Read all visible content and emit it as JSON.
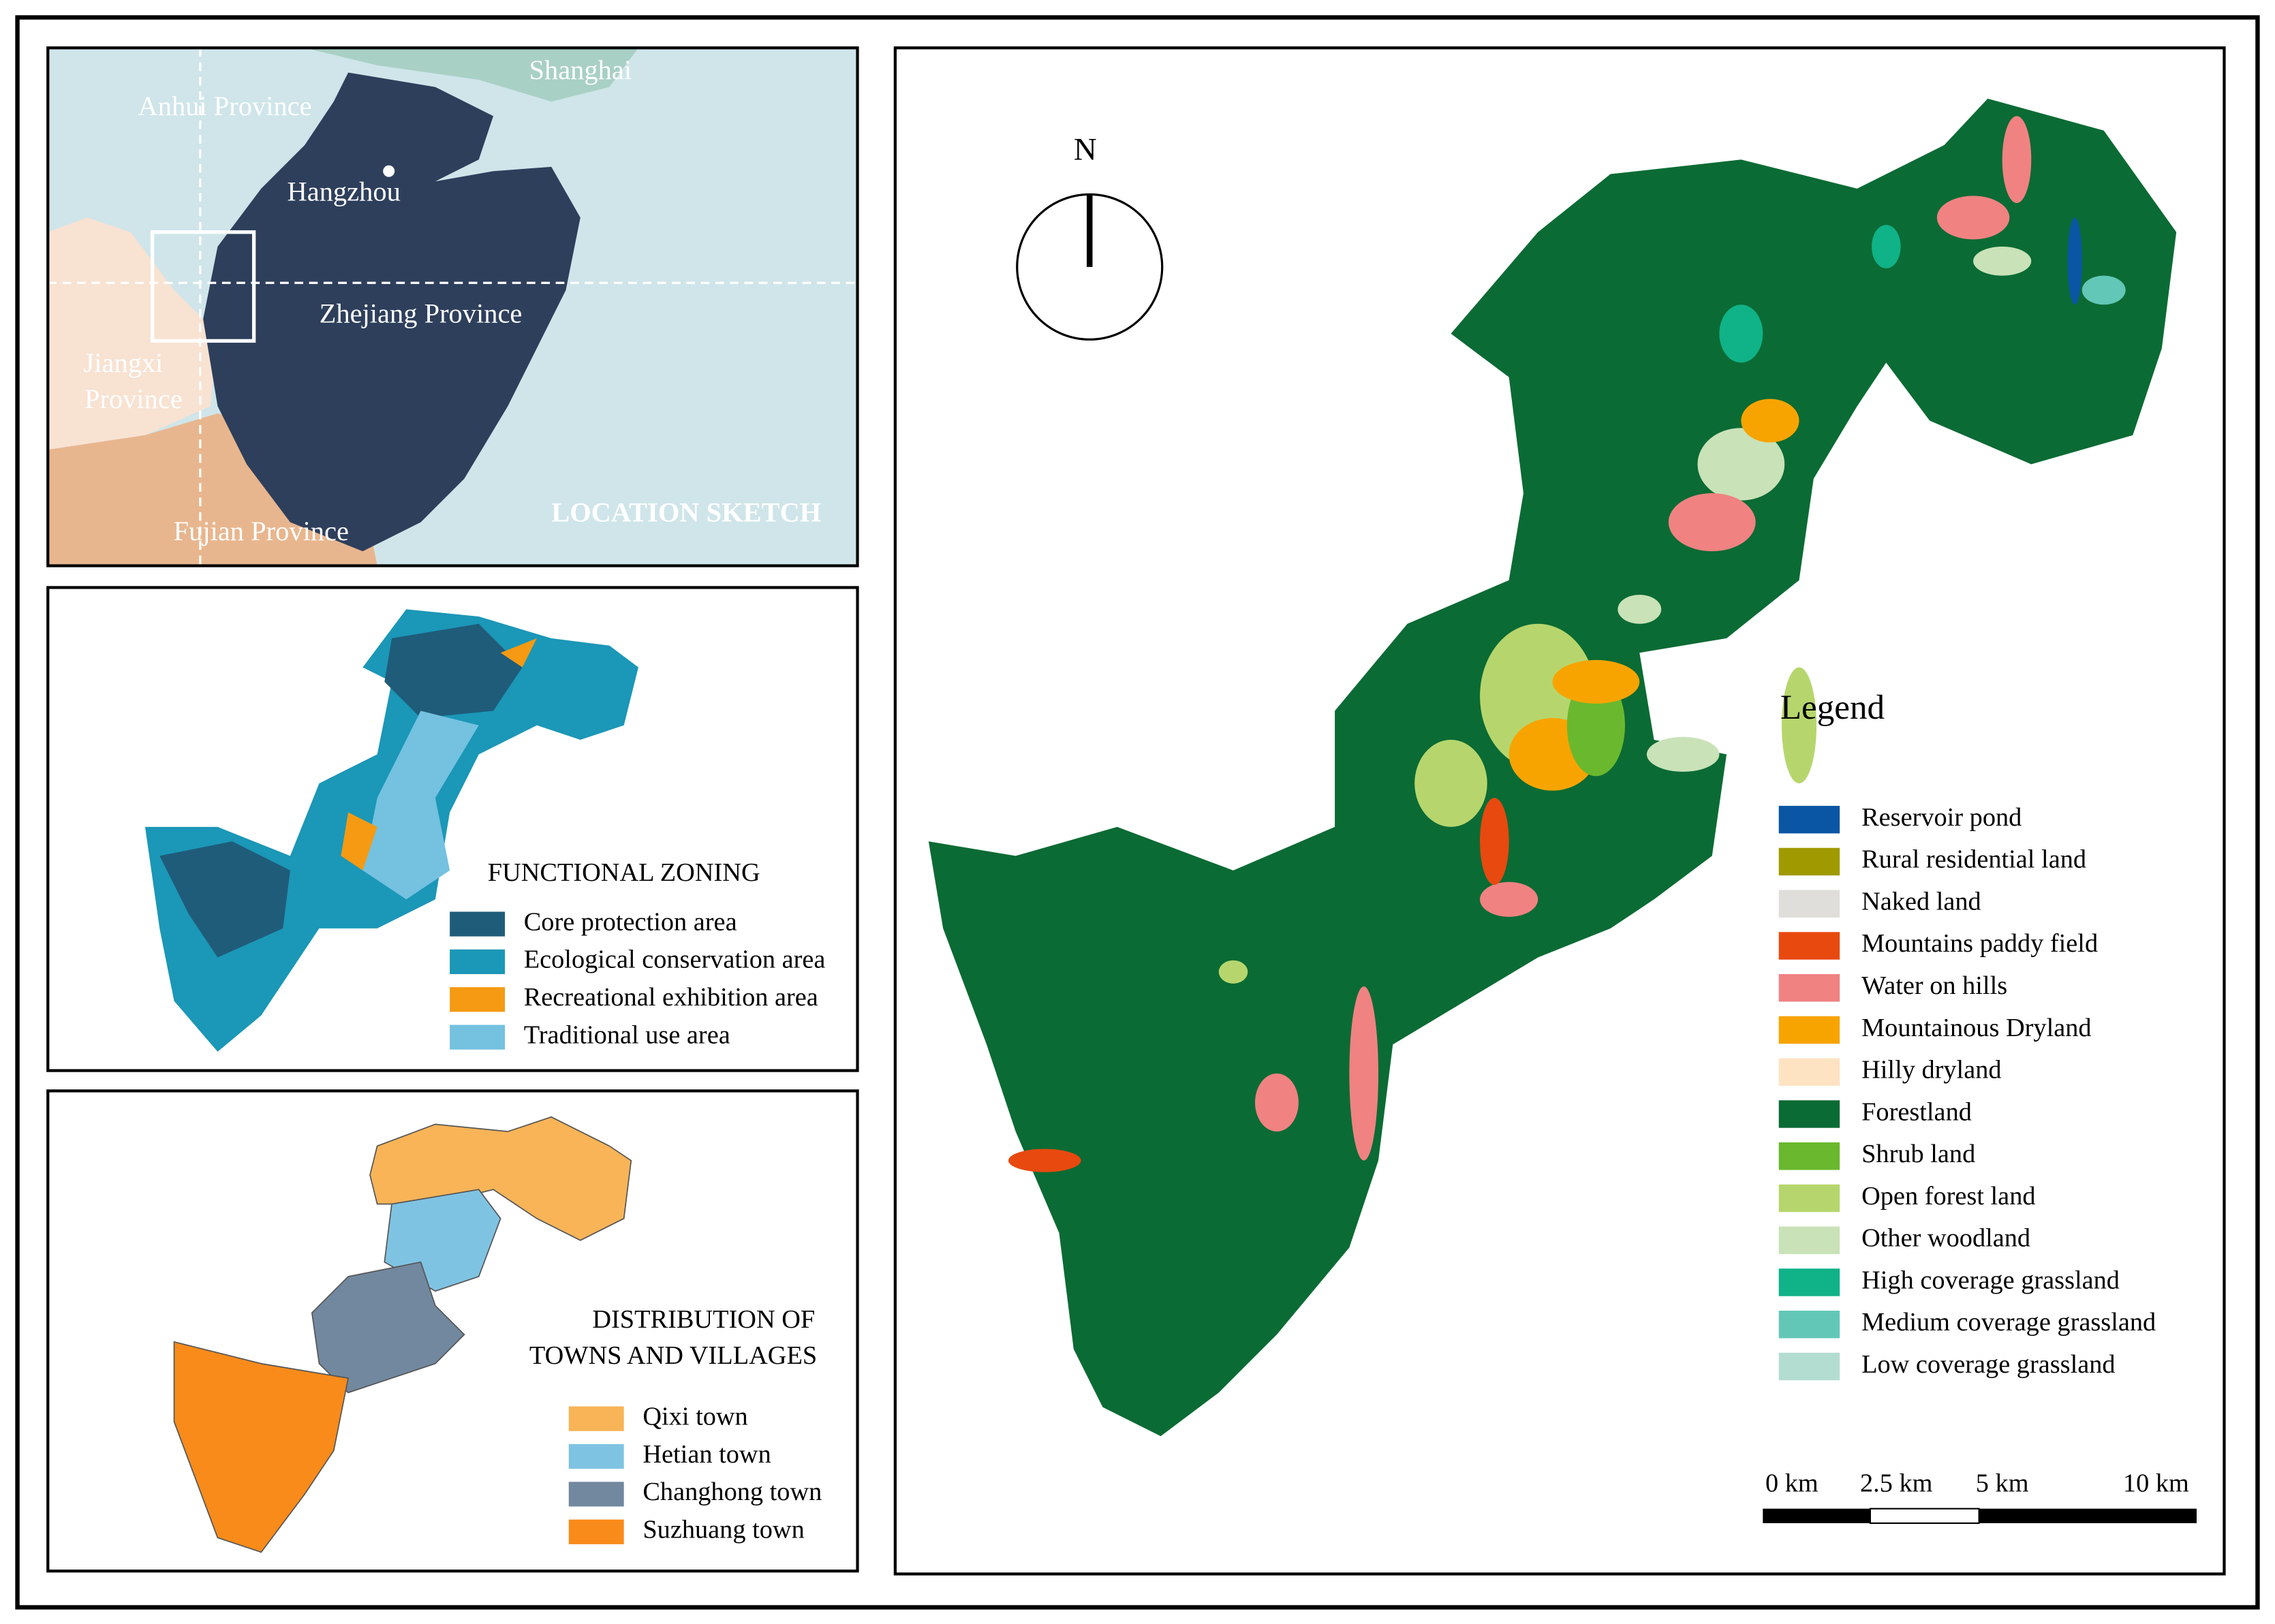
{
  "location_sketch": {
    "title": "LOCATION SKETCH",
    "shanghai": "Shanghai",
    "anhui": "Anhui Province",
    "hangzhou": "Hangzhou",
    "zhejiang": "Zhejiang Province",
    "jiangxi": [
      "Jiangxi",
      "Province"
    ],
    "fujian": "Fujian Province"
  },
  "functional_zoning": {
    "title": "FUNCTIONAL ZONING",
    "legend": [
      {
        "label": "Core protection area",
        "color": "#1f5c7a"
      },
      {
        "label": "Ecological conservation area",
        "color": "#1b97b7"
      },
      {
        "label": "Recreational exhibition area",
        "color": "#f59a12"
      },
      {
        "label": "Traditional use area",
        "color": "#74c1e0"
      }
    ]
  },
  "towns": {
    "title": [
      "DISTRIBUTION OF",
      "TOWNS AND VILLAGES"
    ],
    "legend": [
      {
        "label": "Qixi town",
        "color": "#f8b457"
      },
      {
        "label": "Hetian town",
        "color": "#7fc3e3"
      },
      {
        "label": "Changhong town",
        "color": "#71889f"
      },
      {
        "label": "Suzhuang town",
        "color": "#f98b1a"
      }
    ]
  },
  "main_map": {
    "north": "N",
    "legend_title": "Legend",
    "legend": [
      {
        "label": "Reservoir pond",
        "color": "#0a56a4"
      },
      {
        "label": "Rural residential land",
        "color": "#a09a00"
      },
      {
        "label": "Naked land",
        "color": "#e0dedb"
      },
      {
        "label": "Mountains paddy field",
        "color": "#e8490f"
      },
      {
        "label": "Water on hills",
        "color": "#f08282"
      },
      {
        "label": "Mountainous Dryland",
        "color": "#f7a400"
      },
      {
        "label": "Hilly dryland",
        "color": "#fde3c2"
      },
      {
        "label": "Forestland",
        "color": "#0b6b34"
      },
      {
        "label": "Shrub land",
        "color": "#6ab82e"
      },
      {
        "label": "Open forest land",
        "color": "#b6d66d"
      },
      {
        "label": "Other woodland",
        "color": "#c9e2b8"
      },
      {
        "label": "High coverage grassland",
        "color": "#10b288"
      },
      {
        "label": "Medium coverage grassland",
        "color": "#63c7b7"
      },
      {
        "label": "Low coverage grassland",
        "color": "#b3ddd0"
      }
    ],
    "scale_labels": [
      "0 km",
      "2.5 km",
      "5 km",
      "10 km"
    ]
  }
}
